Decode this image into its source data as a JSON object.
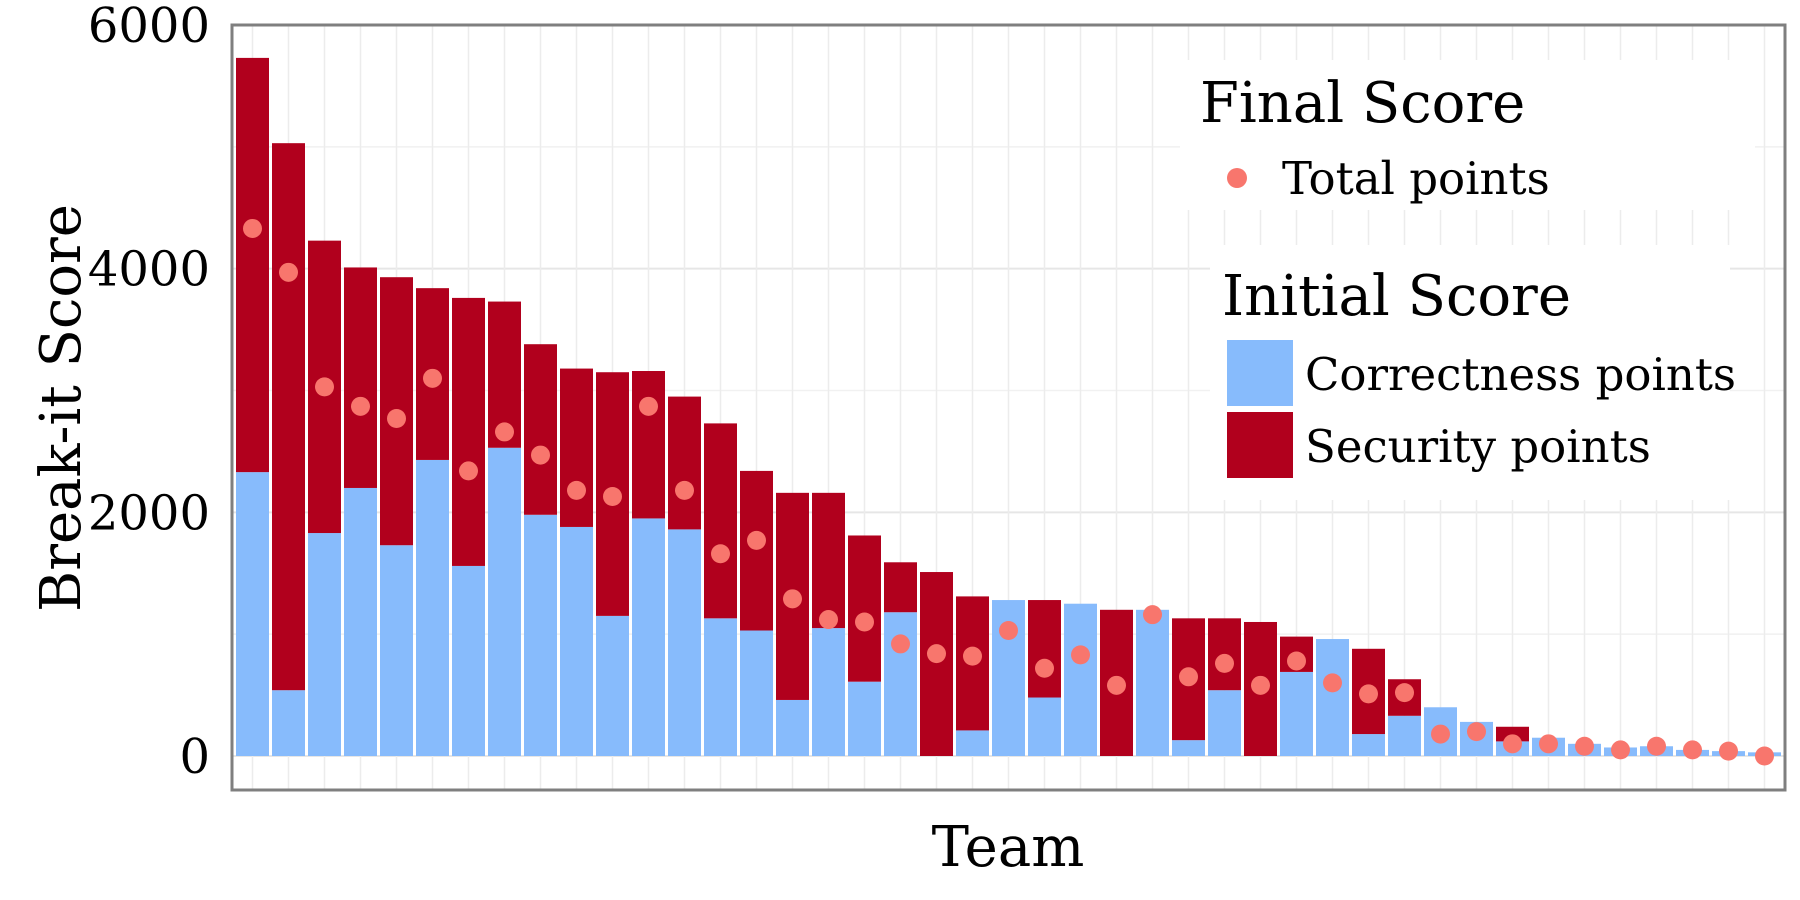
{
  "chart_data": {
    "type": "bar",
    "stacked": true,
    "xlabel": "Team",
    "ylabel": "Break-it Score",
    "ylim": [
      0,
      6000
    ],
    "yticks": [
      0,
      2000,
      4000,
      6000
    ],
    "grid": true,
    "legend_position": "top-right",
    "legend": {
      "final_title": "Final Score",
      "final_items": [
        {
          "label": "Total points",
          "color": "#f8766d",
          "marker": "circle"
        }
      ],
      "initial_title": "Initial Score",
      "initial_items": [
        {
          "label": "Correctness points",
          "color": "#87bbfc",
          "marker": "square"
        },
        {
          "label": "Security points",
          "color": "#b1001d",
          "marker": "square"
        }
      ]
    },
    "series": [
      {
        "name": "Correctness points",
        "color": "#87bbfc",
        "values": [
          2330,
          540,
          1830,
          2200,
          1730,
          2430,
          1560,
          2530,
          1980,
          1880,
          1150,
          1950,
          1860,
          1130,
          1030,
          460,
          1050,
          610,
          1180,
          0,
          210,
          1280,
          480,
          1250,
          0,
          1200,
          130,
          540,
          0,
          690,
          960,
          180,
          330,
          400,
          280,
          120,
          150,
          100,
          70,
          80,
          50,
          40,
          30
        ]
      },
      {
        "name": "Security points",
        "color": "#b1001d",
        "values": [
          3400,
          4490,
          2400,
          1810,
          2200,
          1410,
          2200,
          1200,
          1400,
          1300,
          2000,
          1210,
          1090,
          1600,
          1310,
          1700,
          1110,
          1200,
          410,
          1510,
          1100,
          0,
          800,
          0,
          1200,
          0,
          1000,
          590,
          1100,
          290,
          0,
          700,
          300,
          0,
          0,
          120,
          0,
          0,
          0,
          0,
          0,
          0,
          0
        ]
      }
    ],
    "total_points": [
      4330,
      3970,
      3030,
      2870,
      2770,
      3100,
      2340,
      2660,
      2470,
      2180,
      2130,
      2870,
      2180,
      1660,
      1770,
      1290,
      1120,
      1100,
      920,
      840,
      820,
      1030,
      720,
      830,
      580,
      1160,
      650,
      760,
      580,
      780,
      600,
      510,
      520,
      180,
      200,
      100,
      100,
      80,
      50,
      80,
      50,
      40,
      0
    ]
  }
}
